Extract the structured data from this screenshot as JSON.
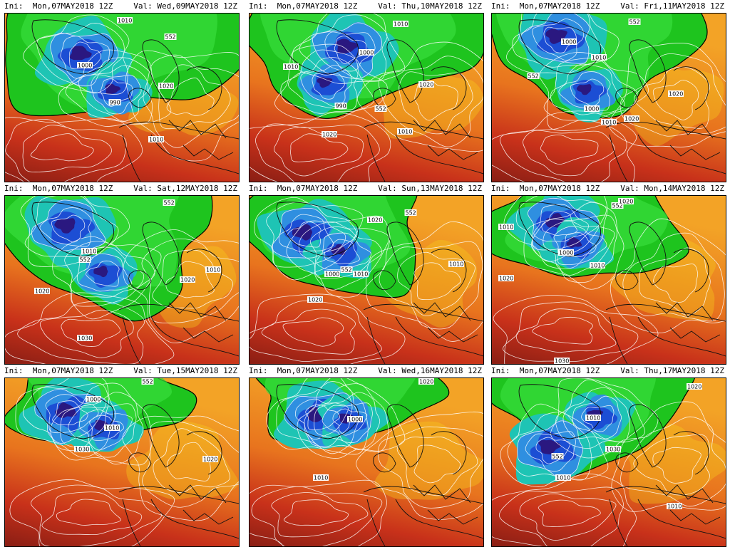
{
  "init_prefix": "Ini:",
  "valid_prefix": "Val:",
  "panels": [
    {
      "ini": "Mon,07MAY2018 12Z",
      "val": "Wed,09MAY2018 12Z",
      "labels": [
        [
          "1010",
          168,
          10
        ],
        [
          "552",
          232,
          33
        ],
        [
          "1000",
          112,
          73
        ],
        [
          "1020",
          226,
          102
        ],
        [
          "990",
          154,
          125
        ],
        [
          "1010",
          212,
          177
        ]
      ]
    },
    {
      "ini": "Mon,07MAY2018 12Z",
      "val": "Thu,10MAY2018 12Z",
      "labels": [
        [
          "1010",
          212,
          15
        ],
        [
          "1000",
          164,
          55
        ],
        [
          "1010",
          58,
          75
        ],
        [
          "1020",
          248,
          100
        ],
        [
          "990",
          128,
          130
        ],
        [
          "552",
          184,
          134
        ],
        [
          "1020",
          112,
          170
        ],
        [
          "1010",
          218,
          166
        ]
      ]
    },
    {
      "ini": "Mon,07MAY2018 12Z",
      "val": "Fri,11MAY2018 12Z",
      "labels": [
        [
          "552",
          200,
          12
        ],
        [
          "1000",
          108,
          40
        ],
        [
          "1010",
          150,
          62
        ],
        [
          "552",
          58,
          88
        ],
        [
          "1020",
          258,
          113
        ],
        [
          "1000",
          140,
          134
        ],
        [
          "1010",
          164,
          153
        ],
        [
          "1020",
          196,
          148
        ]
      ]
    },
    {
      "ini": "Mon,07MAY2018 12Z",
      "val": "Sat,12MAY2018 12Z",
      "labels": [
        [
          "552",
          230,
          10
        ],
        [
          "1010",
          118,
          78
        ],
        [
          "552",
          112,
          90
        ],
        [
          "1010",
          292,
          104
        ],
        [
          "1020",
          256,
          118
        ],
        [
          "1020",
          52,
          134
        ],
        [
          "1030",
          112,
          200
        ]
      ]
    },
    {
      "ini": "Mon,07MAY2018 12Z",
      "val": "Sun,13MAY2018 12Z",
      "labels": [
        [
          "552",
          226,
          24
        ],
        [
          "1020",
          176,
          34
        ],
        [
          "1000",
          116,
          110
        ],
        [
          "1010",
          156,
          110
        ],
        [
          "552",
          136,
          104
        ],
        [
          "1010",
          290,
          96
        ],
        [
          "1020",
          92,
          146
        ]
      ]
    },
    {
      "ini": "Mon,07MAY2018 12Z",
      "val": "Mon,14MAY2018 12Z",
      "labels": [
        [
          "552",
          176,
          14
        ],
        [
          "1020",
          188,
          8
        ],
        [
          "1010",
          20,
          44
        ],
        [
          "1000",
          104,
          80
        ],
        [
          "1010",
          148,
          98
        ],
        [
          "1020",
          20,
          116
        ],
        [
          "1030",
          98,
          233
        ]
      ]
    },
    {
      "ini": "Mon,07MAY2018 12Z",
      "val": "Tue,15MAY2018 12Z",
      "labels": [
        [
          "552",
          200,
          4
        ],
        [
          "1000",
          124,
          30
        ],
        [
          "1010",
          150,
          70
        ],
        [
          "1030",
          108,
          100
        ],
        [
          "1020",
          288,
          114
        ]
      ]
    },
    {
      "ini": "Mon,07MAY2018 12Z",
      "val": "Wed,16MAY2018 12Z",
      "labels": [
        [
          "1020",
          248,
          0
        ],
        [
          "1000",
          148,
          58
        ],
        [
          "1010",
          100,
          140
        ]
      ]
    },
    {
      "ini": "Mon,07MAY2018 12Z",
      "val": "Thu,17MAY2018 12Z",
      "labels": [
        [
          "1020",
          284,
          12
        ],
        [
          "552",
          92,
          110
        ],
        [
          "1010",
          142,
          56
        ],
        [
          "1030",
          170,
          100
        ],
        [
          "1010",
          100,
          140
        ],
        [
          "1010",
          256,
          180
        ]
      ]
    }
  ],
  "legend": {
    "colors": {
      "deep": "#8a1e14",
      "red": "#c8311a",
      "orange": "#e8741e",
      "amber": "#f3a326",
      "yellow": "#f6d21c",
      "green": "#1ec41e",
      "lgreen": "#37de3c",
      "cyan": "#1ec4b4",
      "lblue": "#2f8fe0",
      "blue": "#1c4ed4",
      "purple": "#2a1880",
      "coast": "#111111",
      "contour": "#ffffff"
    }
  }
}
